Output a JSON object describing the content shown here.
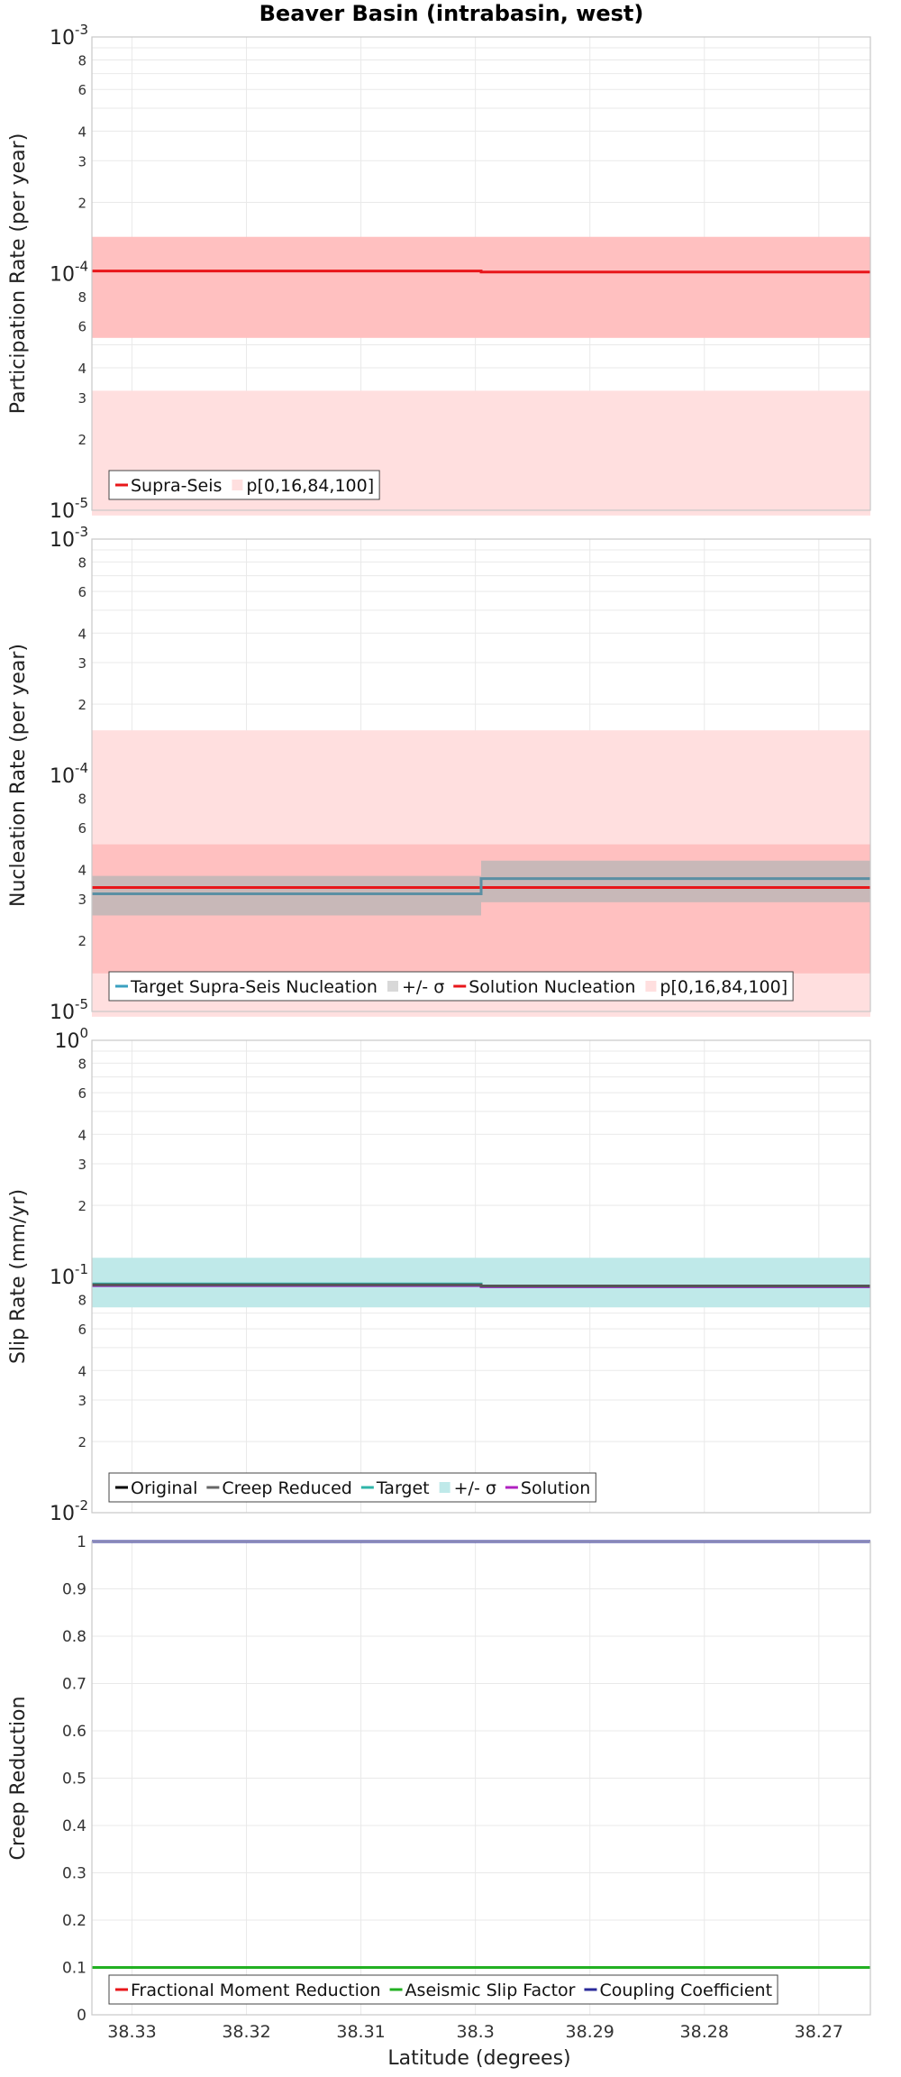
{
  "chart_data": {
    "type": "line",
    "title": "Beaver Basin (intrabasin, west)",
    "xlabel": "Latitude (degrees)",
    "xlim": [
      38.3335,
      38.2655
    ],
    "x_ticks": [
      38.33,
      38.32,
      38.31,
      38.3,
      38.29,
      38.28,
      38.27
    ],
    "x_tick_labels": [
      "38.33",
      "38.32",
      "38.31",
      "38.3",
      "38.29",
      "38.28",
      "38.27"
    ],
    "section_boundaries": [
      38.3335,
      38.2995,
      38.2655
    ],
    "panels": [
      {
        "id": "participation",
        "ylabel": "Participation Rate (per year)",
        "yscale": "log",
        "ylim": [
          1e-05,
          0.001
        ],
        "bands": [
          {
            "name": "p[0,100]",
            "color": "#ffdfdf",
            "segments": [
              [
                3.2e-05,
                9.5e-06
              ],
              [
                3.2e-05,
                9.5e-06
              ]
            ]
          },
          {
            "name": "p[16,84]",
            "color": "#ffc0c0",
            "segments": [
              [
                0.000143,
                5.35e-05
              ],
              [
                0.000143,
                5.35e-05
              ]
            ]
          }
        ],
        "lines": [
          {
            "name": "Supra-Seis",
            "color": "#e8161a",
            "values": [
              0.0001025,
              0.0001015
            ]
          }
        ],
        "legend": [
          {
            "label": "Supra-Seis",
            "symbol": "line",
            "color": "#e8161a"
          },
          {
            "label": "p[0,16,84,100]",
            "symbol": "box",
            "color": "#ffdfdf"
          }
        ]
      },
      {
        "id": "nucleation",
        "ylabel": "Nucleation Rate (per year)",
        "yscale": "log",
        "ylim": [
          1e-05,
          0.001
        ],
        "bands": [
          {
            "name": "p[0,100]",
            "color": "#ffdfdf",
            "segments": [
              [
                0.000155,
                9.5e-06
              ],
              [
                0.000155,
                9.5e-06
              ]
            ]
          },
          {
            "name": "p[16,84]",
            "color": "#ffc0c0",
            "segments": [
              [
                5.1e-05,
                1.45e-05
              ],
              [
                5.1e-05,
                1.45e-05
              ]
            ]
          },
          {
            "name": "+/- σ",
            "color": "#b6b6b6",
            "opacity": 0.75,
            "segments": [
              [
                3.75e-05,
                2.55e-05
              ],
              [
                4.35e-05,
                2.9e-05
              ]
            ]
          }
        ],
        "lines": [
          {
            "name": "Solution Nucleation",
            "color": "#e8161a",
            "values": [
              3.35e-05,
              3.35e-05
            ]
          },
          {
            "name": "Target Supra-Seis Nucleation",
            "color": "#5a8fa3",
            "values": [
              3.15e-05,
              3.65e-05
            ]
          }
        ],
        "legend": [
          {
            "label": "Target Supra-Seis Nucleation",
            "symbol": "line",
            "color": "#3aa0c0"
          },
          {
            "label": "+/- σ",
            "symbol": "box",
            "color": "#d8d8d8"
          },
          {
            "label": "Solution Nucleation",
            "symbol": "line",
            "color": "#e8161a"
          },
          {
            "label": "p[0,16,84,100]",
            "symbol": "box",
            "color": "#ffdfdf"
          }
        ]
      },
      {
        "id": "slip",
        "ylabel": "Slip Rate (mm/yr)",
        "yscale": "log",
        "ylim": [
          0.01,
          1
        ],
        "bands": [
          {
            "name": "+/- σ",
            "color": "#bfe9e9",
            "segments": [
              [
                0.12,
                0.074
              ],
              [
                0.12,
                0.074
              ]
            ]
          }
        ],
        "lines": [
          {
            "name": "Target",
            "color": "#2fb5a9",
            "values": [
              0.093,
              0.091
            ]
          },
          {
            "name": "Solution",
            "color": "#9a22c8",
            "values": [
              0.0915,
              0.0905
            ]
          },
          {
            "name": "Creep Reduced",
            "color": "#555555",
            "values": [
              0.0922,
              0.0912
            ]
          }
        ],
        "legend": [
          {
            "label": "Original",
            "symbol": "line",
            "color": "#000000"
          },
          {
            "label": "Creep Reduced",
            "symbol": "line",
            "color": "#666666"
          },
          {
            "label": "Target",
            "symbol": "line",
            "color": "#2fb5a9"
          },
          {
            "label": "+/- σ",
            "symbol": "box",
            "color": "#bfe9e9"
          },
          {
            "label": "Solution",
            "symbol": "line",
            "color": "#b021c0"
          }
        ]
      },
      {
        "id": "creep",
        "ylabel": "Creep Reduction",
        "yscale": "linear",
        "ylim": [
          0,
          1
        ],
        "y_ticks": [
          0,
          0.1,
          0.2,
          0.3,
          0.4,
          0.5,
          0.6,
          0.7,
          0.8,
          0.9,
          1
        ],
        "y_tick_labels": [
          "0",
          "0.1",
          "0.2",
          "0.3",
          "0.4",
          "0.5",
          "0.6",
          "0.7",
          "0.8",
          "0.9",
          "1"
        ],
        "bands": [],
        "lines": [
          {
            "name": "Aseismic Slip Factor",
            "color": "#22b022",
            "values": [
              0.1,
              0.1
            ]
          },
          {
            "name": "Coupling Coefficient",
            "color": "#2a2a9a",
            "values": [
              1.0,
              1.0
            ]
          }
        ],
        "legend": [
          {
            "label": "Fractional Moment Reduction",
            "symbol": "line",
            "color": "#e8161a"
          },
          {
            "label": "Aseismic Slip Factor",
            "symbol": "line",
            "color": "#22b022"
          },
          {
            "label": "Coupling Coefficient",
            "symbol": "line",
            "color": "#2a2a9a"
          }
        ]
      }
    ]
  }
}
